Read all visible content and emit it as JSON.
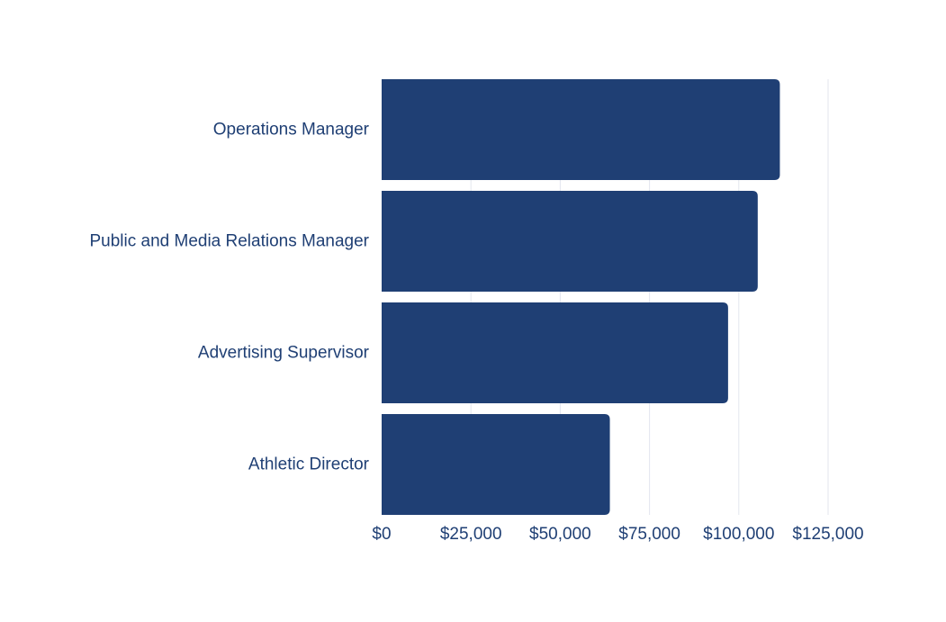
{
  "colors": {
    "bar": "#1f3f74",
    "text": "#1f3f74",
    "grid": "#e3e6ee",
    "background": "#ffffff"
  },
  "chart_data": {
    "type": "bar",
    "orientation": "horizontal",
    "title": "",
    "xlabel": "",
    "ylabel": "",
    "categories": [
      "Operations Manager",
      "Public and Media Relations Manager",
      "Advertising Supervisor",
      "Athletic Director"
    ],
    "values": [
      111500,
      105300,
      97000,
      63900
    ],
    "xlim": [
      0,
      125000
    ],
    "x_ticks": [
      0,
      25000,
      50000,
      75000,
      100000,
      125000
    ],
    "x_tick_labels": [
      "$0",
      "$25,000",
      "$50,000",
      "$75,000",
      "$100,000",
      "$125,000"
    ],
    "grid": "vertical",
    "legend": "none"
  }
}
